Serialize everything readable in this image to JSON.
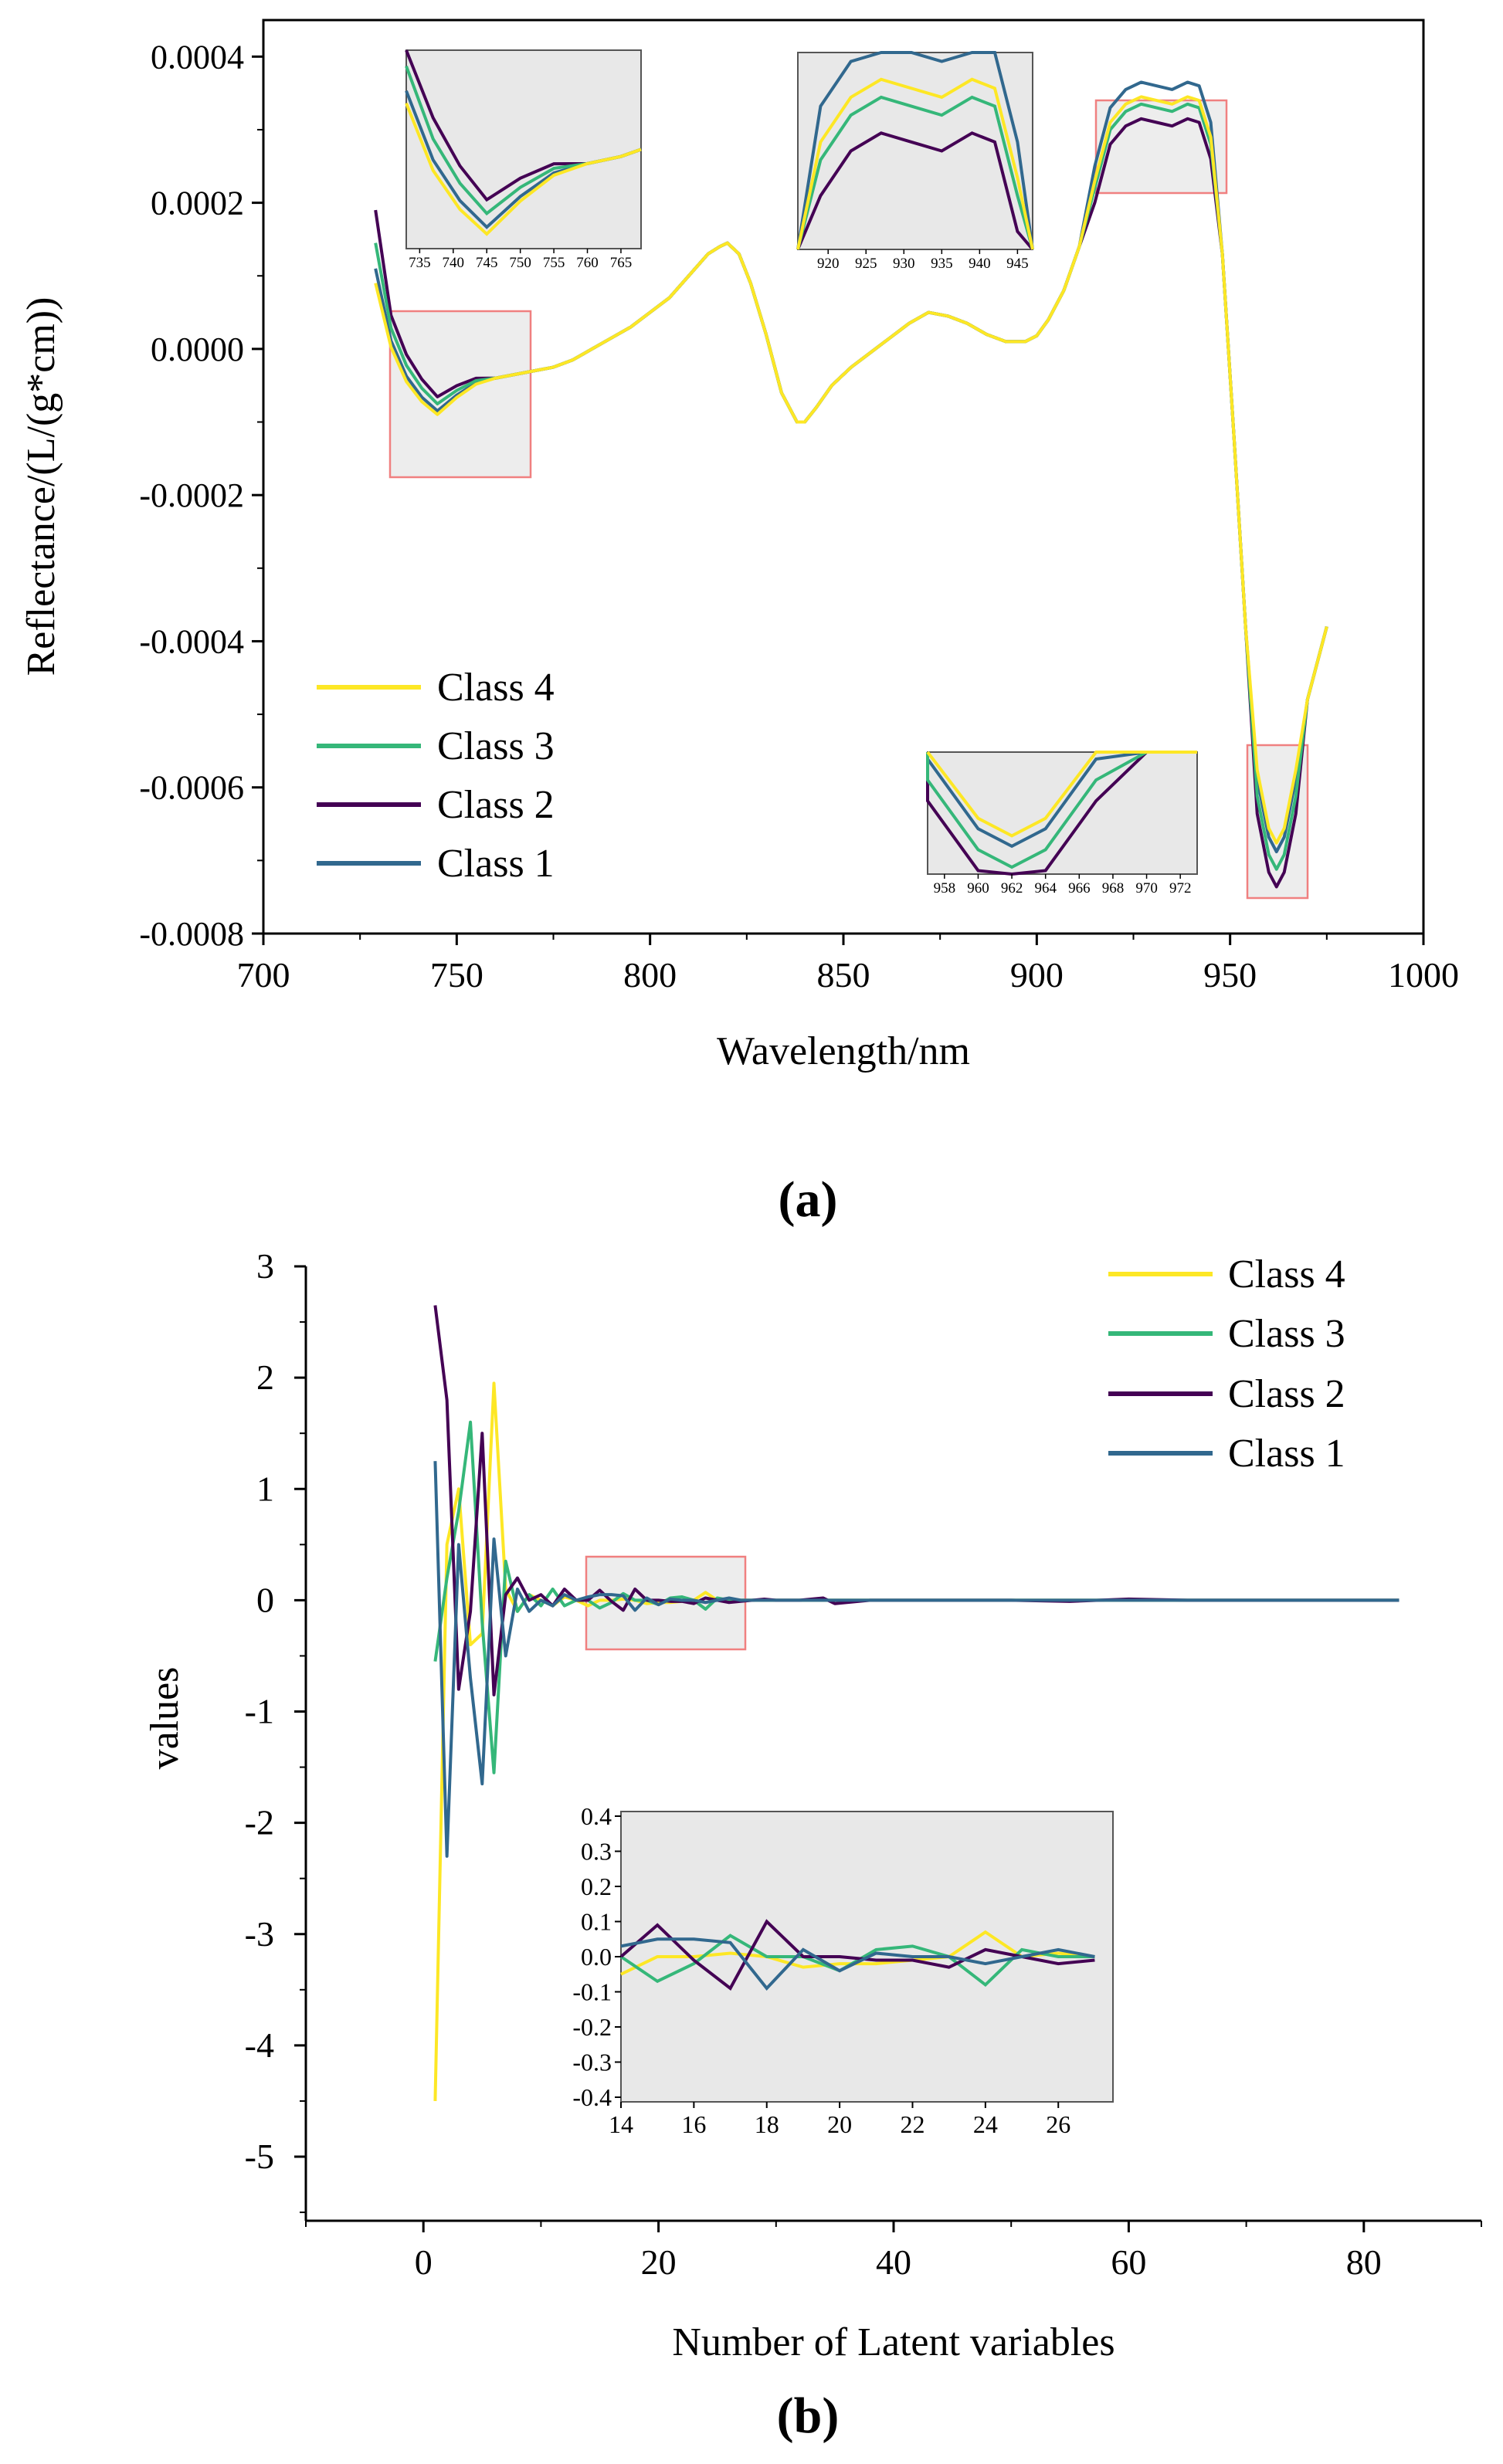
{
  "colors": {
    "class4": "#fde725",
    "class3": "#35b779",
    "class2": "#440154",
    "class1": "#31688e",
    "inset_bg": "#e8e8e8",
    "highlight_box": "#f08080"
  },
  "chart_data": [
    {
      "type": "line",
      "panel_label": "(a)",
      "xlabel": "Wavelength/nm",
      "ylabel": "Reflectance/(L/(g*cm))",
      "xlim": [
        700,
        1000
      ],
      "ylim": [
        -0.0008,
        0.00045
      ],
      "x_ticks": [
        700,
        750,
        800,
        850,
        900,
        950,
        1000
      ],
      "x_tick_labels": [
        "700",
        "750",
        "800",
        "850",
        "900",
        "950",
        "1000"
      ],
      "y_ticks": [
        0.0004,
        0.0002,
        0.0,
        -0.0002,
        -0.0004,
        -0.0006,
        -0.0008
      ],
      "y_tick_labels": [
        "0.0004",
        "0.0002",
        "0.0000",
        "-0.0002",
        "-0.0004",
        "-0.0006",
        "-0.0008"
      ],
      "legend": {
        "position": "bottom-left",
        "entries": [
          "Class 4",
          "Class 3",
          "Class 2",
          "Class 1"
        ]
      },
      "base_curve": {
        "x": [
          729,
          733,
          737,
          741,
          745,
          750,
          755,
          760,
          765,
          770,
          775,
          780,
          785,
          790,
          795,
          800,
          805,
          810,
          815,
          818,
          820,
          823,
          826,
          830,
          834,
          838,
          840,
          843,
          847,
          852,
          857,
          862,
          867,
          872,
          877,
          882,
          887,
          892,
          897,
          900,
          903,
          907,
          911,
          915,
          919,
          923,
          927,
          931,
          935,
          939,
          942,
          945,
          948,
          951,
          954,
          957,
          960,
          962,
          964,
          967,
          970,
          975
        ],
        "y": [
          0.00011,
          2e-05,
          -3e-05,
          -6e-05,
          -8e-05,
          -6e-05,
          -4.5e-05,
          -4e-05,
          -3.5e-05,
          -3e-05,
          -2.5e-05,
          -1.5e-05,
          0.0,
          1.5e-05,
          3e-05,
          5e-05,
          7e-05,
          0.0001,
          0.00013,
          0.00014,
          0.000145,
          0.00013,
          9e-05,
          2e-05,
          -6e-05,
          -0.0001,
          -0.0001,
          -8e-05,
          -5e-05,
          -2.5e-05,
          -5e-06,
          1.5e-05,
          3.5e-05,
          5e-05,
          4.5e-05,
          3.5e-05,
          2e-05,
          1e-05,
          1e-05,
          1.8e-05,
          4e-05,
          8e-05,
          0.00014,
          0.00022,
          0.0003,
          0.000325,
          0.000335,
          0.00033,
          0.000325,
          0.000335,
          0.00033,
          0.00028,
          0.00013,
          -0.00012,
          -0.00038,
          -0.0006,
          -0.00068,
          -0.0007,
          -0.00068,
          -0.0006,
          -0.00048,
          -0.00038
        ]
      },
      "series": [
        {
          "name": "Class 4",
          "start_y": 9e-05,
          "dip_min": -0.0001,
          "peak_offset": 1e-05
        },
        {
          "name": "Class 3",
          "start_y": 0.000145,
          "dip_min": -7e-05,
          "peak_offset": 0.0
        },
        {
          "name": "Class 2",
          "start_y": 0.00019,
          "dip_min": -5e-05,
          "peak_offset": -2e-05
        },
        {
          "name": "Class 1",
          "start_y": 0.00011,
          "dip_min": -9e-05,
          "peak_offset": 3e-05
        }
      ],
      "insets": [
        {
          "name": "inset-735-765",
          "x_tick_labels": [
            "735",
            "740",
            "745",
            "750",
            "755",
            "760",
            "765"
          ]
        },
        {
          "name": "inset-920-945",
          "x_tick_labels": [
            "920",
            "925",
            "930",
            "935",
            "940",
            "945"
          ]
        },
        {
          "name": "inset-958-972",
          "x_tick_labels": [
            "958",
            "960",
            "962",
            "964",
            "966",
            "968",
            "970",
            "972"
          ]
        }
      ]
    },
    {
      "type": "line",
      "panel_label": "(b)",
      "xlabel": "Number of Latent variables",
      "ylabel": "values",
      "xlim": [
        -10,
        90
      ],
      "ylim": [
        -5.5,
        3.1
      ],
      "x_ticks": [
        0,
        20,
        40,
        60,
        80
      ],
      "x_tick_labels": [
        "0",
        "20",
        "40",
        "60",
        "80"
      ],
      "y_ticks": [
        3,
        2,
        1,
        0,
        -1,
        -2,
        -3,
        -4,
        -5
      ],
      "y_tick_labels": [
        "3",
        "2",
        "1",
        "0",
        "-1",
        "-2",
        "-3",
        "-4",
        "-5"
      ],
      "legend": {
        "position": "top-right",
        "entries": [
          "Class 4",
          "Class 3",
          "Class 2",
          "Class 1"
        ]
      },
      "series": [
        {
          "name": "Class 4",
          "x": [
            1,
            2,
            3,
            4,
            5,
            6,
            7,
            8,
            9,
            10,
            11,
            12,
            13,
            14,
            15,
            16,
            17,
            18,
            19,
            20,
            21,
            22,
            23,
            24,
            25,
            26,
            27,
            28,
            29,
            30,
            32,
            35,
            40,
            45,
            50,
            55,
            60,
            65,
            70,
            75,
            80,
            83
          ],
          "y": [
            -4.5,
            0.5,
            1.0,
            -0.4,
            -0.3,
            1.95,
            0.1,
            -0.1,
            0.05,
            0.0,
            -0.05,
            0.03,
            0.0,
            -0.05,
            0.0,
            0.0,
            0.01,
            0.0,
            -0.03,
            -0.02,
            -0.02,
            -0.01,
            0.0,
            0.07,
            0.0,
            0.01,
            0.0,
            0.0,
            0.0,
            0.0,
            0.0,
            0.0,
            0.0,
            0.0,
            0.0,
            0.0,
            0.0,
            0.0,
            0.0,
            0.0,
            0.0,
            0.0
          ]
        },
        {
          "name": "Class 3",
          "x": [
            1,
            2,
            3,
            4,
            5,
            6,
            7,
            8,
            9,
            10,
            11,
            12,
            13,
            14,
            15,
            16,
            17,
            18,
            19,
            20,
            21,
            22,
            23,
            24,
            25,
            26,
            27,
            28,
            29,
            30,
            32,
            35,
            40,
            45,
            50,
            55,
            60,
            65,
            70,
            75,
            80,
            83
          ],
          "y": [
            -0.55,
            0.2,
            0.8,
            1.6,
            -0.2,
            -1.55,
            0.35,
            -0.1,
            0.05,
            -0.05,
            0.1,
            -0.05,
            0.0,
            0.0,
            -0.07,
            -0.02,
            0.06,
            0.0,
            0.0,
            -0.04,
            0.02,
            0.03,
            0.0,
            -0.08,
            0.02,
            0.0,
            0.0,
            0.0,
            0.0,
            0.0,
            0.0,
            0.0,
            0.0,
            0.0,
            0.0,
            0.0,
            0.0,
            0.0,
            0.0,
            0.0,
            0.0,
            0.0
          ]
        },
        {
          "name": "Class 2",
          "x": [
            1,
            2,
            3,
            4,
            5,
            6,
            7,
            8,
            9,
            10,
            11,
            12,
            13,
            14,
            15,
            16,
            17,
            18,
            19,
            20,
            21,
            22,
            23,
            24,
            25,
            26,
            27,
            28,
            29,
            30,
            32,
            34,
            35,
            38,
            40,
            45,
            50,
            55,
            60,
            65,
            70,
            75,
            80,
            83
          ],
          "y": [
            2.65,
            1.8,
            -0.8,
            -0.1,
            1.5,
            -0.85,
            0.05,
            0.2,
            0.0,
            0.05,
            -0.05,
            0.1,
            0.0,
            0.0,
            0.09,
            -0.01,
            -0.09,
            0.1,
            0.0,
            0.0,
            -0.01,
            -0.01,
            -0.03,
            0.02,
            0.0,
            -0.02,
            -0.01,
            0.0,
            0.01,
            0.0,
            0.0,
            0.02,
            -0.03,
            0.0,
            0.0,
            0.0,
            0.0,
            -0.01,
            0.01,
            0.0,
            0.0,
            0.0,
            0.0,
            0.0
          ]
        },
        {
          "name": "Class 1",
          "x": [
            1,
            2,
            3,
            4,
            5,
            6,
            7,
            8,
            9,
            10,
            11,
            12,
            13,
            14,
            15,
            16,
            17,
            18,
            19,
            20,
            21,
            22,
            23,
            24,
            25,
            26,
            27,
            28,
            29,
            30,
            32,
            35,
            40,
            45,
            50,
            55,
            60,
            65,
            70,
            75,
            80,
            83
          ],
          "y": [
            1.25,
            -2.3,
            0.5,
            -0.7,
            -1.65,
            0.55,
            -0.5,
            0.1,
            -0.1,
            0.0,
            -0.05,
            0.05,
            0.0,
            0.03,
            0.05,
            0.05,
            0.04,
            -0.09,
            0.02,
            -0.04,
            0.01,
            0.0,
            0.0,
            -0.02,
            0.0,
            0.02,
            0.0,
            0.0,
            0.0,
            0.0,
            0.0,
            0.0,
            0.0,
            0.0,
            0.0,
            0.0,
            0.0,
            0.0,
            0.0,
            0.0,
            0.0,
            0.0
          ]
        }
      ],
      "inset": {
        "name": "inset-14-27",
        "xlim": [
          14,
          27
        ],
        "ylim": [
          -0.4,
          0.4
        ],
        "x_tick_labels": [
          "14",
          "16",
          "18",
          "20",
          "22",
          "24",
          "26"
        ],
        "y_tick_labels": [
          "0.4",
          "0.3",
          "0.2",
          "0.1",
          "0.0",
          "-0.1",
          "-0.2",
          "-0.3",
          "-0.4"
        ]
      }
    }
  ]
}
